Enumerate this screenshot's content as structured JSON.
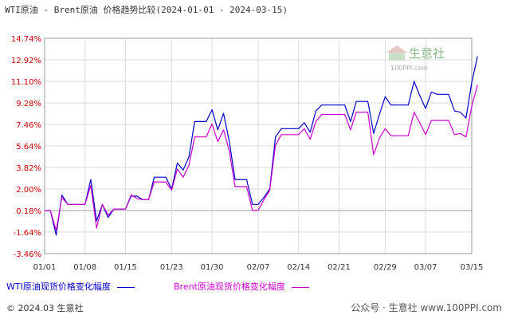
{
  "title": "WTI原油 - Brent原油 价格趋势比较(2024-01-01 - 2024-03-15)",
  "copyright": "© 2024.03 生意社",
  "credit": "公众号 · 生意社 www.100PPI.com",
  "watermark": {
    "text": "生意社",
    "url": "100PPI.com"
  },
  "colors": {
    "wti": "#0000cc",
    "brent": "#cc00cc",
    "ytick": "#cc0000",
    "grid": "#d8d8d8"
  },
  "chart_data": {
    "type": "line",
    "title": "WTI原油 - Brent原油 价格趋势比较(2024-01-01 - 2024-03-15)",
    "xlabel": "",
    "ylabel": "",
    "x_range": [
      "01/01",
      "03/15"
    ],
    "x_ticks": [
      "01/01",
      "01/08",
      "01/15",
      "01/23",
      "01/30",
      "02/07",
      "02/14",
      "02/21",
      "02/29",
      "03/07",
      "03/15"
    ],
    "y_ticks": [
      "14.74%",
      "12.92%",
      "11.10%",
      "9.28%",
      "7.46%",
      "5.64%",
      "3.82%",
      "2.00%",
      "0.18%",
      "-1.64%",
      "-3.46%"
    ],
    "ylim": [
      -3.46,
      14.74
    ],
    "grid": true,
    "legend_position": "bottom",
    "series": [
      {
        "name": "WTI原油现货价格变化幅度",
        "color": "#0000cc",
        "points": [
          [
            "01/01",
            0.18
          ],
          [
            "01/02",
            0.18
          ],
          [
            "01/03",
            -1.9
          ],
          [
            "01/04",
            1.5
          ],
          [
            "01/05",
            0.7
          ],
          [
            "01/06",
            0.7
          ],
          [
            "01/07",
            0.7
          ],
          [
            "01/08",
            0.7
          ],
          [
            "01/09",
            2.8
          ],
          [
            "01/10",
            -0.7
          ],
          [
            "01/11",
            0.7
          ],
          [
            "01/12",
            -0.4
          ],
          [
            "01/13",
            0.3
          ],
          [
            "01/14",
            0.3
          ],
          [
            "01/15",
            0.3
          ],
          [
            "01/16",
            1.4
          ],
          [
            "01/17",
            1.4
          ],
          [
            "01/18",
            1.1
          ],
          [
            "01/19",
            1.1
          ],
          [
            "01/20",
            3.0
          ],
          [
            "01/21",
            3.0
          ],
          [
            "01/22",
            3.0
          ],
          [
            "01/23",
            2.0
          ],
          [
            "01/24",
            4.2
          ],
          [
            "01/25",
            3.6
          ],
          [
            "01/26",
            4.7
          ],
          [
            "01/27",
            7.7
          ],
          [
            "01/28",
            7.7
          ],
          [
            "01/29",
            7.7
          ],
          [
            "01/30",
            8.7
          ],
          [
            "01/31",
            7.0
          ],
          [
            "02/01",
            8.4
          ],
          [
            "02/02",
            6.0
          ],
          [
            "02/03",
            2.8
          ],
          [
            "02/04",
            2.8
          ],
          [
            "02/05",
            2.8
          ],
          [
            "02/06",
            0.7
          ],
          [
            "02/07",
            0.7
          ],
          [
            "02/08",
            1.3
          ],
          [
            "02/09",
            2.0
          ],
          [
            "02/10",
            6.4
          ],
          [
            "02/11",
            7.1
          ],
          [
            "02/12",
            7.1
          ],
          [
            "02/13",
            7.1
          ],
          [
            "02/14",
            7.1
          ],
          [
            "02/15",
            7.6
          ],
          [
            "02/16",
            6.8
          ],
          [
            "02/17",
            8.6
          ],
          [
            "02/18",
            9.1
          ],
          [
            "02/19",
            9.1
          ],
          [
            "02/20",
            9.1
          ],
          [
            "02/21",
            9.1
          ],
          [
            "02/22",
            9.1
          ],
          [
            "02/23",
            7.7
          ],
          [
            "02/24",
            9.4
          ],
          [
            "02/25",
            9.4
          ],
          [
            "02/26",
            9.4
          ],
          [
            "02/27",
            6.7
          ],
          [
            "02/28",
            8.3
          ],
          [
            "02/29",
            9.8
          ],
          [
            "03/01",
            9.1
          ],
          [
            "03/02",
            9.1
          ],
          [
            "03/03",
            9.1
          ],
          [
            "03/04",
            9.1
          ],
          [
            "03/05",
            11.1
          ],
          [
            "03/06",
            9.9
          ],
          [
            "03/07",
            8.8
          ],
          [
            "03/08",
            10.2
          ],
          [
            "03/09",
            10.0
          ],
          [
            "03/10",
            10.0
          ],
          [
            "03/11",
            10.0
          ],
          [
            "03/12",
            8.6
          ],
          [
            "03/13",
            8.5
          ],
          [
            "03/14",
            8.0
          ],
          [
            "03/15",
            11.0
          ],
          [
            "03/16",
            13.2
          ]
        ]
      },
      {
        "name": "Brent原油现货价格变化幅度",
        "color": "#cc00cc",
        "points": [
          [
            "01/01",
            0.18
          ],
          [
            "01/02",
            0.18
          ],
          [
            "01/03",
            -1.5
          ],
          [
            "01/04",
            1.3
          ],
          [
            "01/05",
            0.7
          ],
          [
            "01/06",
            0.7
          ],
          [
            "01/07",
            0.7
          ],
          [
            "01/08",
            0.7
          ],
          [
            "01/09",
            2.3
          ],
          [
            "01/10",
            -1.3
          ],
          [
            "01/11",
            0.7
          ],
          [
            "01/12",
            -0.2
          ],
          [
            "01/13",
            0.3
          ],
          [
            "01/14",
            0.3
          ],
          [
            "01/15",
            0.3
          ],
          [
            "01/16",
            1.5
          ],
          [
            "01/17",
            1.2
          ],
          [
            "01/18",
            1.1
          ],
          [
            "01/19",
            1.1
          ],
          [
            "01/20",
            2.6
          ],
          [
            "01/21",
            2.6
          ],
          [
            "01/22",
            2.6
          ],
          [
            "01/23",
            1.9
          ],
          [
            "01/24",
            3.7
          ],
          [
            "01/25",
            3.0
          ],
          [
            "01/26",
            4.0
          ],
          [
            "01/27",
            6.4
          ],
          [
            "01/28",
            6.4
          ],
          [
            "01/29",
            6.4
          ],
          [
            "01/30",
            7.5
          ],
          [
            "01/31",
            6.0
          ],
          [
            "02/01",
            7.0
          ],
          [
            "02/02",
            5.2
          ],
          [
            "02/03",
            2.2
          ],
          [
            "02/04",
            2.2
          ],
          [
            "02/05",
            2.2
          ],
          [
            "02/06",
            0.2
          ],
          [
            "02/07",
            0.2
          ],
          [
            "02/08",
            1.1
          ],
          [
            "02/09",
            1.9
          ],
          [
            "02/10",
            5.7
          ],
          [
            "02/11",
            6.6
          ],
          [
            "02/12",
            6.6
          ],
          [
            "02/13",
            6.6
          ],
          [
            "02/14",
            6.6
          ],
          [
            "02/15",
            7.1
          ],
          [
            "02/16",
            6.2
          ],
          [
            "02/17",
            7.7
          ],
          [
            "02/18",
            8.3
          ],
          [
            "02/19",
            8.3
          ],
          [
            "02/20",
            8.3
          ],
          [
            "02/21",
            8.3
          ],
          [
            "02/22",
            8.3
          ],
          [
            "02/23",
            7.0
          ],
          [
            "02/24",
            8.5
          ],
          [
            "02/25",
            8.5
          ],
          [
            "02/26",
            8.5
          ],
          [
            "02/27",
            4.9
          ],
          [
            "02/28",
            6.3
          ],
          [
            "02/29",
            7.1
          ],
          [
            "03/01",
            6.5
          ],
          [
            "03/02",
            6.5
          ],
          [
            "03/03",
            6.5
          ],
          [
            "03/04",
            6.5
          ],
          [
            "03/05",
            8.5
          ],
          [
            "03/06",
            7.6
          ],
          [
            "03/07",
            6.6
          ],
          [
            "03/08",
            7.8
          ],
          [
            "03/09",
            7.8
          ],
          [
            "03/10",
            7.8
          ],
          [
            "03/11",
            7.8
          ],
          [
            "03/12",
            6.6
          ],
          [
            "03/13",
            6.7
          ],
          [
            "03/14",
            6.4
          ],
          [
            "03/15",
            9.0
          ],
          [
            "03/16",
            10.8
          ]
        ]
      }
    ]
  }
}
